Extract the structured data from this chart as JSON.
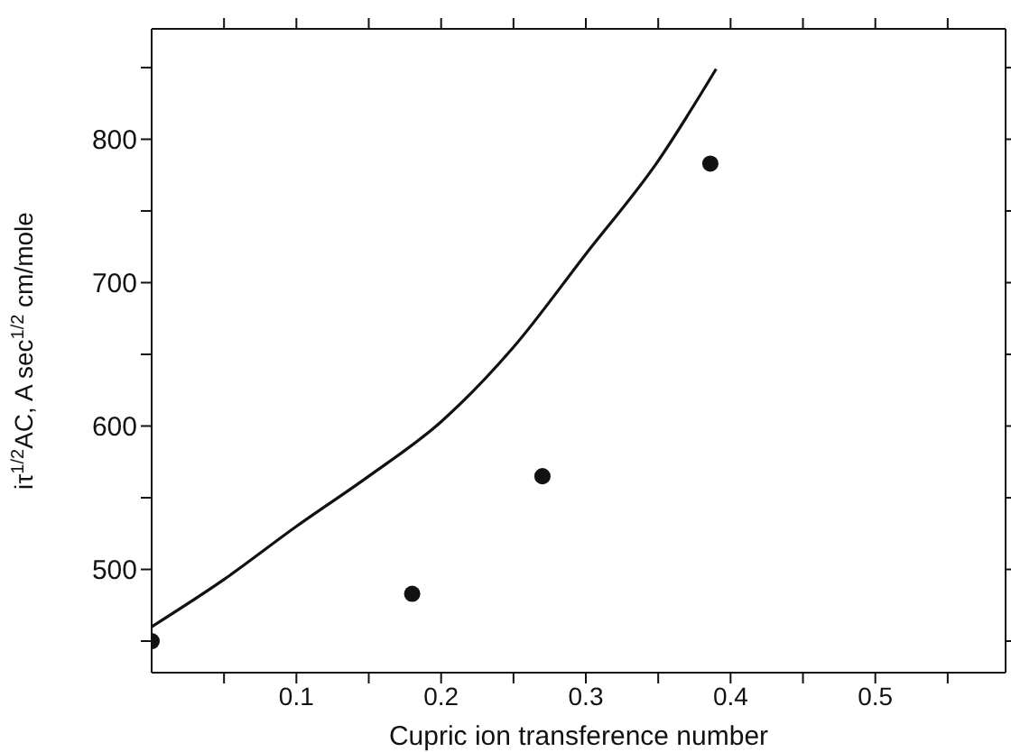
{
  "chart_data": {
    "type": "scatter",
    "xlabel": "Cupric ion transference number",
    "ylabel": "iτ$^{1/2}$AC, A sec$^{1/2}$ cm/mole",
    "xlim": [
      0,
      0.59
    ],
    "xticks": [
      {
        "value": 0.05,
        "label": null
      },
      0.1,
      {
        "value": 0.15,
        "label": null
      },
      0.2,
      {
        "value": 0.25,
        "label": null
      },
      0.3,
      {
        "value": 0.35,
        "label": null
      },
      0.4,
      {
        "value": 0.45,
        "label": null
      },
      0.5,
      {
        "value": 0.55,
        "label": null
      }
    ],
    "ylim": [
      428,
      877
    ],
    "yticks": [
      {
        "value": 450,
        "label": null
      },
      500,
      {
        "value": 550,
        "label": null
      },
      600,
      {
        "value": 650,
        "label": null
      },
      700,
      {
        "value": 750,
        "label": null
      },
      800,
      {
        "value": 850,
        "label": null
      }
    ],
    "legend": false,
    "series": [
      {
        "type": "line",
        "color": "#111111",
        "marker": "none",
        "line_style": "solid",
        "x": [
          0,
          0.05,
          0.1,
          0.15,
          0.2,
          0.25,
          0.3,
          0.35,
          0.39
        ],
        "values": [
          460,
          493,
          530,
          565,
          603,
          655,
          720,
          785,
          849
        ]
      },
      {
        "color": "#111111",
        "marker": "circle",
        "x": [
          0,
          0.18,
          0.27,
          0.386
        ],
        "values": [
          450,
          483,
          565,
          783
        ]
      }
    ]
  }
}
